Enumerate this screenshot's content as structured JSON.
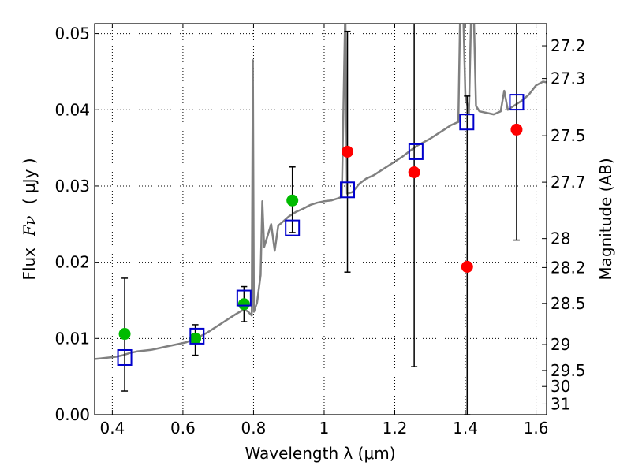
{
  "chart_data": {
    "type": "scatter",
    "xlabel": "Wavelength  λ (μm)",
    "ylabel_text": "Flux",
    "ylabel_symbol": "Fν",
    "ylabel_unit": "( μJy )",
    "y2label": "Magnitude (AB)",
    "xlim": [
      0.35,
      1.63
    ],
    "ylim": [
      0.0,
      0.0513
    ],
    "grid": true,
    "x_ticks": [
      0.4,
      0.6,
      0.8,
      1.0,
      1.2,
      1.4,
      1.6
    ],
    "x_tick_labels": [
      "0.4",
      "0.6",
      "0.8",
      "1",
      "1.2",
      "1.4",
      "1.6"
    ],
    "y_ticks": [
      0.0,
      0.01,
      0.02,
      0.03,
      0.04,
      0.05
    ],
    "y_tick_labels": [
      "0.00",
      "0.01",
      "0.02",
      "0.03",
      "0.04",
      "0.05"
    ],
    "mag_ticks": [
      {
        "label": "27.2",
        "y": 0.0484
      },
      {
        "label": "27.3",
        "y": 0.0441
      },
      {
        "label": "27.5",
        "y": 0.0366
      },
      {
        "label": "27.7",
        "y": 0.0305
      },
      {
        "label": "28",
        "y": 0.0231
      },
      {
        "label": "28.2",
        "y": 0.0193
      },
      {
        "label": "28.5",
        "y": 0.0146
      },
      {
        "label": "29",
        "y": 0.0092
      },
      {
        "label": "29.5",
        "y": 0.0058
      },
      {
        "label": "30",
        "y": 0.0037
      },
      {
        "label": "31",
        "y": 0.0014
      }
    ],
    "colors": {
      "spectrum": "#808080",
      "detection": "#00bb00",
      "nondetection": "#ff0000",
      "model": "#0000cc",
      "errorbar": "#000000"
    },
    "spectrum": [
      [
        0.35,
        0.0073
      ],
      [
        0.37,
        0.0074
      ],
      [
        0.39,
        0.0075
      ],
      [
        0.41,
        0.0076
      ],
      [
        0.43,
        0.0078
      ],
      [
        0.45,
        0.0081
      ],
      [
        0.47,
        0.0083
      ],
      [
        0.49,
        0.0084
      ],
      [
        0.51,
        0.0085
      ],
      [
        0.53,
        0.0087
      ],
      [
        0.55,
        0.0089
      ],
      [
        0.57,
        0.0091
      ],
      [
        0.59,
        0.0093
      ],
      [
        0.61,
        0.0095
      ],
      [
        0.63,
        0.0099
      ],
      [
        0.65,
        0.0103
      ],
      [
        0.67,
        0.0108
      ],
      [
        0.69,
        0.0114
      ],
      [
        0.71,
        0.012
      ],
      [
        0.73,
        0.0126
      ],
      [
        0.75,
        0.0132
      ],
      [
        0.765,
        0.0136
      ],
      [
        0.775,
        0.0138
      ],
      [
        0.785,
        0.0135
      ],
      [
        0.795,
        0.013
      ],
      [
        0.798,
        0.0465
      ],
      [
        0.801,
        0.0135
      ],
      [
        0.81,
        0.0147
      ],
      [
        0.82,
        0.0183
      ],
      [
        0.825,
        0.028
      ],
      [
        0.83,
        0.022
      ],
      [
        0.84,
        0.0235
      ],
      [
        0.85,
        0.025
      ],
      [
        0.86,
        0.0215
      ],
      [
        0.87,
        0.0248
      ],
      [
        0.88,
        0.0252
      ],
      [
        0.9,
        0.026
      ],
      [
        0.92,
        0.0266
      ],
      [
        0.94,
        0.027
      ],
      [
        0.96,
        0.0275
      ],
      [
        0.98,
        0.0278
      ],
      [
        1.0,
        0.028
      ],
      [
        1.02,
        0.0281
      ],
      [
        1.04,
        0.0284
      ],
      [
        1.05,
        0.0286
      ],
      [
        1.06,
        0.0535
      ],
      [
        1.065,
        0.029
      ],
      [
        1.08,
        0.0292
      ],
      [
        1.1,
        0.0303
      ],
      [
        1.12,
        0.031
      ],
      [
        1.14,
        0.0314
      ],
      [
        1.16,
        0.032
      ],
      [
        1.18,
        0.0326
      ],
      [
        1.2,
        0.0332
      ],
      [
        1.22,
        0.0338
      ],
      [
        1.24,
        0.0345
      ],
      [
        1.26,
        0.0352
      ],
      [
        1.28,
        0.0357
      ],
      [
        1.3,
        0.0362
      ],
      [
        1.32,
        0.0368
      ],
      [
        1.34,
        0.0374
      ],
      [
        1.36,
        0.038
      ],
      [
        1.38,
        0.0384
      ],
      [
        1.385,
        0.052
      ],
      [
        1.39,
        0.06
      ],
      [
        1.4,
        0.042
      ],
      [
        1.41,
        0.0395
      ],
      [
        1.42,
        0.06
      ],
      [
        1.43,
        0.0405
      ],
      [
        1.44,
        0.0398
      ],
      [
        1.46,
        0.0396
      ],
      [
        1.48,
        0.0394
      ],
      [
        1.5,
        0.0398
      ],
      [
        1.51,
        0.0425
      ],
      [
        1.52,
        0.04
      ],
      [
        1.54,
        0.0406
      ],
      [
        1.56,
        0.0412
      ],
      [
        1.58,
        0.042
      ],
      [
        1.6,
        0.0432
      ],
      [
        1.62,
        0.0437
      ],
      [
        1.63,
        0.0436
      ]
    ],
    "series": [
      {
        "key": "detection",
        "marker": "circle",
        "points": [
          {
            "x": 0.435,
            "y": 0.0106,
            "err_low": 0.0031,
            "err_high": 0.0179
          },
          {
            "x": 0.635,
            "y": 0.01,
            "err_low": 0.0078,
            "err_high": 0.0118
          },
          {
            "x": 0.773,
            "y": 0.0145,
            "err_low": 0.0122,
            "err_high": 0.0168
          },
          {
            "x": 0.91,
            "y": 0.0281,
            "err_low": 0.0239,
            "err_high": 0.0325
          }
        ]
      },
      {
        "key": "nondetection",
        "marker": "circle",
        "points": [
          {
            "x": 1.066,
            "y": 0.0345,
            "err_low": 0.0187,
            "err_high": 0.0503
          },
          {
            "x": 1.255,
            "y": 0.0318,
            "err_low": 0.0063,
            "err_high": 0.056
          },
          {
            "x": 1.405,
            "y": 0.0194,
            "err_low": 0.0,
            "err_high": 0.0418
          },
          {
            "x": 1.545,
            "y": 0.0374,
            "err_low": 0.0229,
            "err_high": 0.056
          }
        ]
      },
      {
        "key": "model",
        "marker": "square",
        "points": [
          {
            "x": 0.435,
            "y": 0.0075
          },
          {
            "x": 0.64,
            "y": 0.0103
          },
          {
            "x": 0.773,
            "y": 0.0153
          },
          {
            "x": 0.91,
            "y": 0.0245
          },
          {
            "x": 1.066,
            "y": 0.0295
          },
          {
            "x": 1.26,
            "y": 0.0345
          },
          {
            "x": 1.404,
            "y": 0.0384
          },
          {
            "x": 1.545,
            "y": 0.041
          }
        ]
      }
    ]
  }
}
